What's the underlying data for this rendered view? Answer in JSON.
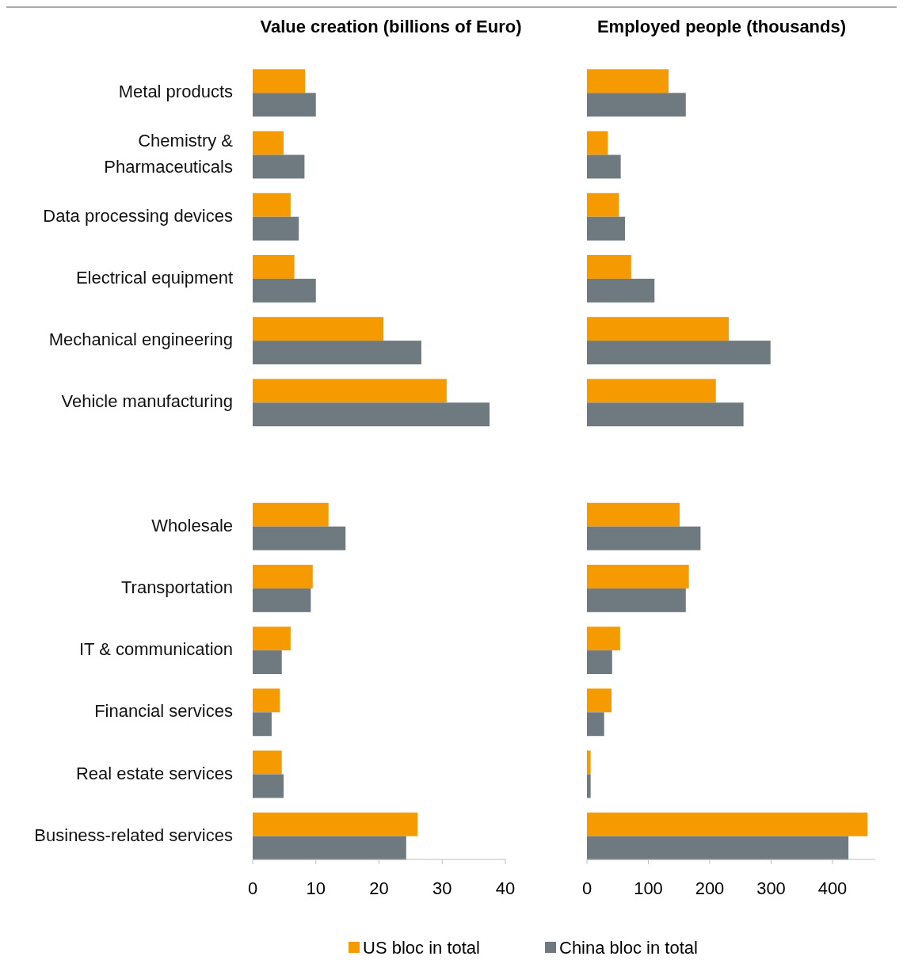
{
  "chart_data": [
    {
      "type": "bar",
      "orientation": "horizontal",
      "title": "Value creation (billions of Euro)",
      "categories": [
        "Metal products",
        "Chemistry & Pharmaceuticals",
        "Data processing devices",
        "Electrical equipment",
        "Mechanical engineering",
        "Vehicle manufacturing",
        null,
        "Wholesale",
        "Transportation",
        "IT & communication",
        "Financial services",
        "Real estate services",
        "Business-related services"
      ],
      "xlim": [
        0,
        40
      ],
      "xticks": [
        0,
        10,
        20,
        30,
        40
      ],
      "grid": false,
      "legend": "bottom",
      "series": [
        {
          "name": "US bloc in total",
          "color": "#f59a00",
          "values": [
            8.3,
            4.9,
            6.0,
            6.6,
            20.7,
            30.7,
            null,
            12.0,
            9.5,
            6.0,
            4.3,
            4.6,
            26.1
          ]
        },
        {
          "name": "China bloc in total",
          "color": "#6e7a80",
          "values": [
            10.0,
            8.2,
            7.3,
            10.0,
            26.7,
            37.5,
            null,
            14.7,
            9.2,
            4.6,
            3.0,
            4.9,
            24.3
          ]
        }
      ]
    },
    {
      "type": "bar",
      "orientation": "horizontal",
      "title": "Employed people (thousands)",
      "categories": [
        "Metal products",
        "Chemistry & Pharmaceuticals",
        "Data processing devices",
        "Electrical equipment",
        "Mechanical engineering",
        "Vehicle manufacturing",
        null,
        "Wholesale",
        "Transportation",
        "IT & communication",
        "Financial services",
        "Real estate services",
        "Business-related services"
      ],
      "xlim": [
        0,
        470
      ],
      "xticks": [
        0,
        100,
        200,
        300,
        400
      ],
      "grid": false,
      "tick_labels": "x",
      "series": [
        {
          "color": "#f59a00",
          "values": [
            133,
            34,
            52,
            72,
            231,
            210,
            null,
            151,
            166,
            54,
            40,
            6,
            457
          ]
        },
        {
          "color": "#6e7a80",
          "values": [
            161,
            55,
            62,
            110,
            299,
            255,
            null,
            185,
            161,
            41,
            28,
            6,
            426
          ]
        }
      ]
    }
  ]
}
